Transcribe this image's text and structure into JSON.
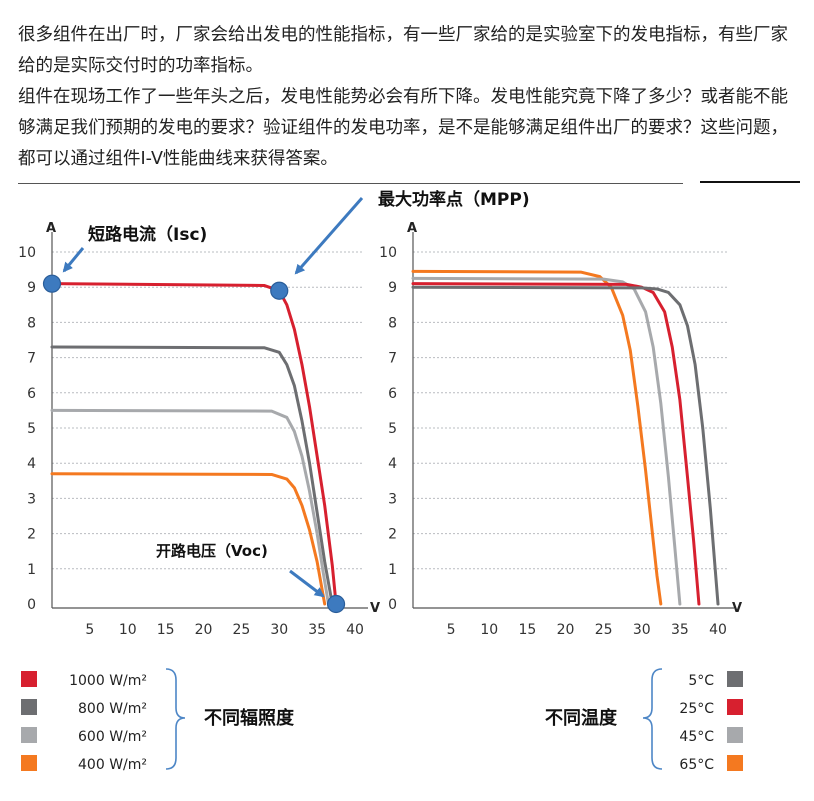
{
  "intro": {
    "paragraph1": "很多组件在出厂时，厂家会给出发电的性能指标，有一些厂家给的是实验室下的发电指标，有些厂家给的是实际交付时的功率指标。",
    "paragraph2": "组件在现场工作了一些年头之后，发电性能势必会有所下降。发电性能究竟下降了多少？或者能不能够满足我们预期的发电的要求？验证组件的发电功率，是不是能够满足组件出厂的要求？这些问题，都可以通过组件I-V性能曲线来获得答案。"
  },
  "annotations": {
    "mpp": "最大功率点（MPP)",
    "isc": "短路电流（Isc)",
    "voc": "开路电压（Voc)"
  },
  "colors": {
    "red": "#d7202f",
    "dark_gray": "#6d6e71",
    "light_gray": "#a7a9ac",
    "orange": "#f47920",
    "marker": "#3d7abf"
  },
  "chart_data": [
    {
      "type": "line",
      "ylabel": "A",
      "xlabel": "V",
      "xlim": [
        0,
        40
      ],
      "ylim": [
        0,
        10
      ],
      "xticks": [
        5,
        10,
        15,
        20,
        25,
        30,
        35,
        40
      ],
      "yticks": [
        0,
        1,
        2,
        3,
        4,
        5,
        6,
        7,
        8,
        9,
        10
      ],
      "grid": true,
      "series": [
        {
          "name": "1000 W/m²",
          "color": "red",
          "isc": 9.1,
          "voc": 37.5,
          "x": [
            0,
            28,
            30,
            31,
            32,
            33,
            34,
            35,
            36,
            37,
            37.5
          ],
          "y": [
            9.1,
            9.05,
            8.9,
            8.5,
            7.8,
            6.8,
            5.6,
            4.2,
            2.8,
            1.1,
            0
          ]
        },
        {
          "name": "800 W/m²",
          "color": "dark_gray",
          "isc": 7.3,
          "voc": 37.0,
          "x": [
            0,
            28,
            30,
            31,
            32,
            33,
            34,
            35,
            36,
            37
          ],
          "y": [
            7.3,
            7.28,
            7.15,
            6.8,
            6.2,
            5.2,
            4.0,
            2.6,
            1.2,
            0
          ]
        },
        {
          "name": "600 W/m²",
          "color": "light_gray",
          "isc": 5.5,
          "voc": 36.5,
          "x": [
            0,
            29,
            31,
            32,
            33,
            34,
            35,
            35.8,
            36.5
          ],
          "y": [
            5.5,
            5.48,
            5.3,
            4.9,
            4.2,
            3.2,
            2.0,
            0.9,
            0
          ]
        },
        {
          "name": "400 W/m²",
          "color": "orange",
          "isc": 3.7,
          "voc": 36.0,
          "x": [
            0,
            29,
            31,
            32,
            33,
            34,
            35,
            35.5,
            36
          ],
          "y": [
            3.7,
            3.68,
            3.55,
            3.3,
            2.8,
            2.1,
            1.2,
            0.6,
            0
          ]
        }
      ],
      "markers": [
        {
          "label": "Isc",
          "x": 0,
          "y": 9.1
        },
        {
          "label": "MPP",
          "x": 30,
          "y": 8.9
        },
        {
          "label": "Voc",
          "x": 37.5,
          "y": 0
        }
      ]
    },
    {
      "type": "line",
      "ylabel": "A",
      "xlabel": "V",
      "xlim": [
        0,
        40
      ],
      "ylim": [
        0,
        10
      ],
      "xticks": [
        5,
        10,
        15,
        20,
        25,
        30,
        35,
        40
      ],
      "yticks": [
        0,
        1,
        2,
        3,
        4,
        5,
        6,
        7,
        8,
        9,
        10
      ],
      "grid": true,
      "series": [
        {
          "name": "5°C",
          "color": "dark_gray",
          "isc": 9.0,
          "voc": 40.0,
          "x": [
            0,
            30,
            32,
            33.5,
            35,
            36,
            37,
            38,
            39,
            40
          ],
          "y": [
            9.0,
            8.98,
            8.95,
            8.85,
            8.5,
            7.9,
            6.8,
            5.0,
            2.7,
            0
          ]
        },
        {
          "name": "25°C",
          "color": "red",
          "isc": 9.1,
          "voc": 37.5,
          "x": [
            0,
            28,
            30,
            31.5,
            33,
            34,
            35,
            36,
            36.8,
            37.5
          ],
          "y": [
            9.1,
            9.08,
            9.0,
            8.85,
            8.3,
            7.3,
            5.8,
            3.6,
            1.8,
            0
          ]
        },
        {
          "name": "45°C",
          "color": "light_gray",
          "isc": 9.25,
          "voc": 35.0,
          "x": [
            0,
            25,
            27.5,
            29,
            30.5,
            31.5,
            32.5,
            33.5,
            34.3,
            35
          ],
          "y": [
            9.25,
            9.23,
            9.15,
            8.95,
            8.3,
            7.3,
            5.7,
            3.6,
            1.7,
            0
          ]
        },
        {
          "name": "65°C",
          "color": "orange",
          "isc": 9.45,
          "voc": 32.5,
          "x": [
            0,
            22,
            24.5,
            26,
            27.5,
            28.5,
            29.5,
            30.5,
            31.5,
            32,
            32.5
          ],
          "y": [
            9.45,
            9.43,
            9.3,
            9.0,
            8.2,
            7.2,
            5.6,
            3.8,
            1.8,
            0.8,
            0
          ]
        }
      ]
    }
  ],
  "legend_left": {
    "items": [
      {
        "label": "1000 W/m²",
        "color": "red"
      },
      {
        "label": "800 W/m²",
        "color": "dark_gray"
      },
      {
        "label": "600 W/m²",
        "color": "light_gray"
      },
      {
        "label": "400 W/m²",
        "color": "orange"
      }
    ],
    "group_label": "不同辐照度"
  },
  "legend_right": {
    "items": [
      {
        "label": "5°C",
        "color": "dark_gray"
      },
      {
        "label": "25°C",
        "color": "red"
      },
      {
        "label": "45°C",
        "color": "light_gray"
      },
      {
        "label": "65°C",
        "color": "orange"
      }
    ],
    "group_label": "不同温度"
  }
}
